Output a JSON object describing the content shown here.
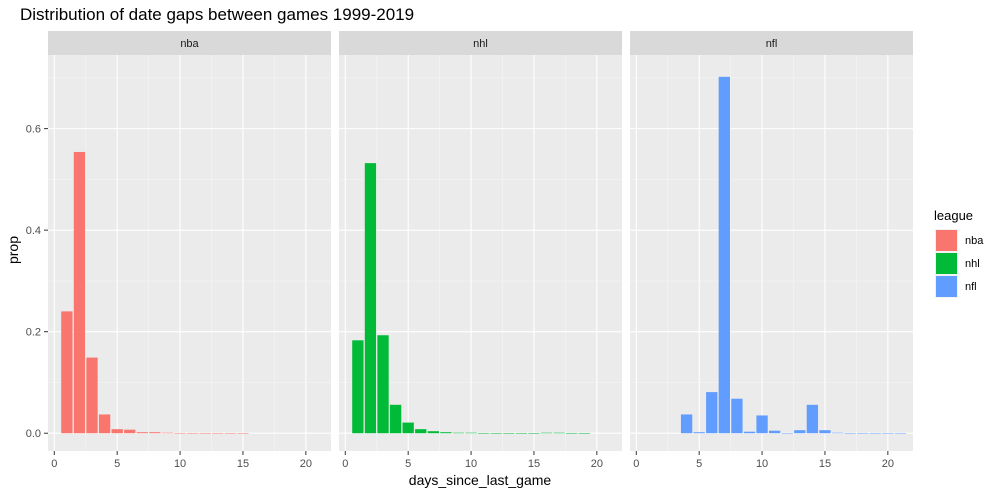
{
  "chart_data": {
    "type": "bar",
    "title": "Distribution of date gaps between games 1999-2019",
    "xlabel": "days_since_last_game",
    "ylabel": "prop",
    "xlim": [
      -0.5,
      22
    ],
    "ylim": [
      -0.035,
      0.745
    ],
    "x_ticks": [
      0,
      5,
      10,
      15,
      20
    ],
    "y_ticks": [
      0.0,
      0.2,
      0.4,
      0.6
    ],
    "y_tick_labels": [
      "0.0",
      "0.2",
      "0.4",
      "0.6"
    ],
    "grid": true,
    "legend": {
      "title": "league",
      "placement": "right"
    },
    "facets": [
      "nba",
      "nhl",
      "nfl"
    ],
    "series": [
      {
        "name": "nba",
        "color": "#F8766D",
        "points": [
          {
            "x": 1,
            "y": 0.24
          },
          {
            "x": 2,
            "y": 0.554
          },
          {
            "x": 3,
            "y": 0.149
          },
          {
            "x": 4,
            "y": 0.037
          },
          {
            "x": 5,
            "y": 0.008
          },
          {
            "x": 6,
            "y": 0.007
          },
          {
            "x": 7,
            "y": 0.002
          },
          {
            "x": 8,
            "y": 0.002
          },
          {
            "x": 9,
            "y": 0.001
          },
          {
            "x": 10,
            "y": 0.0005
          },
          {
            "x": 11,
            "y": 0.0003
          },
          {
            "x": 12,
            "y": 0.0002
          },
          {
            "x": 13,
            "y": 0.0002
          },
          {
            "x": 14,
            "y": 0.0001
          },
          {
            "x": 15,
            "y": 0.0001
          }
        ]
      },
      {
        "name": "nhl",
        "color": "#00BA38",
        "points": [
          {
            "x": 1,
            "y": 0.183
          },
          {
            "x": 2,
            "y": 0.532
          },
          {
            "x": 3,
            "y": 0.193
          },
          {
            "x": 4,
            "y": 0.056
          },
          {
            "x": 5,
            "y": 0.021
          },
          {
            "x": 6,
            "y": 0.008
          },
          {
            "x": 7,
            "y": 0.004
          },
          {
            "x": 8,
            "y": 0.002
          },
          {
            "x": 9,
            "y": 0.001
          },
          {
            "x": 10,
            "y": 0.001
          },
          {
            "x": 11,
            "y": 0.0005
          },
          {
            "x": 12,
            "y": 0.0003
          },
          {
            "x": 13,
            "y": 0.0003
          },
          {
            "x": 14,
            "y": 0.0002
          },
          {
            "x": 15,
            "y": 0.0002
          },
          {
            "x": 16,
            "y": 0.001
          },
          {
            "x": 17,
            "y": 0.001
          },
          {
            "x": 18,
            "y": 0.0005
          },
          {
            "x": 19,
            "y": 0.0003
          }
        ]
      },
      {
        "name": "nfl",
        "color": "#619CFF",
        "points": [
          {
            "x": 4,
            "y": 0.037
          },
          {
            "x": 5,
            "y": 0.002
          },
          {
            "x": 6,
            "y": 0.081
          },
          {
            "x": 7,
            "y": 0.702
          },
          {
            "x": 8,
            "y": 0.068
          },
          {
            "x": 9,
            "y": 0.003
          },
          {
            "x": 10,
            "y": 0.035
          },
          {
            "x": 11,
            "y": 0.005
          },
          {
            "x": 12,
            "y": 0.0005
          },
          {
            "x": 13,
            "y": 0.006
          },
          {
            "x": 14,
            "y": 0.056
          },
          {
            "x": 15,
            "y": 0.006
          },
          {
            "x": 16,
            "y": 0.001
          },
          {
            "x": 17,
            "y": 0.0005
          },
          {
            "x": 18,
            "y": 0.0005
          },
          {
            "x": 19,
            "y": 0.0005
          },
          {
            "x": 20,
            "y": 0.0005
          },
          {
            "x": 21,
            "y": 0.0005
          }
        ]
      }
    ]
  },
  "colors": {
    "panel_background": "#EBEBEB",
    "strip_background": "#D9D9D9",
    "grid_major": "#FFFFFF",
    "grid_minor": "#F5F5F5"
  }
}
